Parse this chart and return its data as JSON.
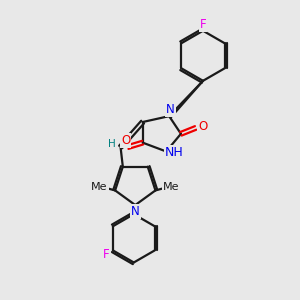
{
  "bg_color": "#e8e8e8",
  "bond_color": "#1a1a1a",
  "N_color": "#0000ee",
  "O_color": "#ee0000",
  "F_color": "#ee00ee",
  "H_color": "#008080",
  "line_width": 1.6,
  "font_size": 8.5,
  "figsize": [
    3.0,
    3.0
  ],
  "dpi": 100,
  "xlim": [
    0,
    10
  ],
  "ylim": [
    0,
    10
  ]
}
